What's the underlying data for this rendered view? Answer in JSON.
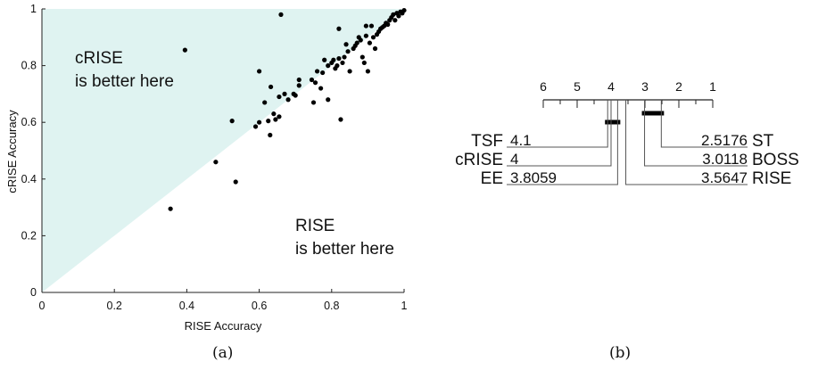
{
  "panel_a": {
    "caption": "(a)",
    "upper_region_label": [
      "cRISE",
      "is better here"
    ],
    "lower_region_label": [
      "RISE",
      "is better here"
    ],
    "shade_color": "#dff3f1"
  },
  "panel_b": {
    "caption": "(b)"
  },
  "chart_data": [
    {
      "type": "scatter",
      "xlabel": "RISE Accuracy",
      "ylabel": "cRISE Accuracy",
      "xlim": [
        0,
        1
      ],
      "ylim": [
        0,
        1
      ],
      "xticks": [
        "0",
        "0.2",
        "0.4",
        "0.6",
        "0.8",
        "1"
      ],
      "yticks": [
        "0",
        "0.2",
        "0.4",
        "0.6",
        "0.8",
        "1"
      ],
      "grid": false,
      "series": [
        {
          "color": "#000000",
          "points": [
            [
              0.355,
              0.295
            ],
            [
              0.395,
              0.855
            ],
            [
              0.48,
              0.46
            ],
            [
              0.535,
              0.39
            ],
            [
              0.525,
              0.605
            ],
            [
              0.59,
              0.585
            ],
            [
              0.6,
              0.6
            ],
            [
              0.6,
              0.78
            ],
            [
              0.615,
              0.67
            ],
            [
              0.625,
              0.605
            ],
            [
              0.63,
              0.555
            ],
            [
              0.632,
              0.725
            ],
            [
              0.64,
              0.63
            ],
            [
              0.645,
              0.61
            ],
            [
              0.655,
              0.69
            ],
            [
              0.66,
              0.98
            ],
            [
              0.655,
              0.62
            ],
            [
              0.67,
              0.7
            ],
            [
              0.68,
              0.68
            ],
            [
              0.695,
              0.7
            ],
            [
              0.7,
              0.695
            ],
            [
              0.71,
              0.73
            ],
            [
              0.71,
              0.75
            ],
            [
              0.745,
              0.75
            ],
            [
              0.75,
              0.67
            ],
            [
              0.755,
              0.74
            ],
            [
              0.76,
              0.78
            ],
            [
              0.77,
              0.72
            ],
            [
              0.775,
              0.775
            ],
            [
              0.78,
              0.82
            ],
            [
              0.79,
              0.68
            ],
            [
              0.79,
              0.8
            ],
            [
              0.8,
              0.81
            ],
            [
              0.805,
              0.82
            ],
            [
              0.81,
              0.79
            ],
            [
              0.815,
              0.8
            ],
            [
              0.82,
              0.93
            ],
            [
              0.82,
              0.825
            ],
            [
              0.825,
              0.61
            ],
            [
              0.83,
              0.81
            ],
            [
              0.835,
              0.83
            ],
            [
              0.84,
              0.875
            ],
            [
              0.845,
              0.85
            ],
            [
              0.85,
              0.78
            ],
            [
              0.86,
              0.86
            ],
            [
              0.865,
              0.87
            ],
            [
              0.87,
              0.88
            ],
            [
              0.875,
              0.9
            ],
            [
              0.88,
              0.89
            ],
            [
              0.885,
              0.83
            ],
            [
              0.89,
              0.81
            ],
            [
              0.895,
              0.905
            ],
            [
              0.895,
              0.94
            ],
            [
              0.9,
              0.78
            ],
            [
              0.905,
              0.88
            ],
            [
              0.91,
              0.94
            ],
            [
              0.915,
              0.9
            ],
            [
              0.92,
              0.86
            ],
            [
              0.925,
              0.91
            ],
            [
              0.93,
              0.92
            ],
            [
              0.935,
              0.93
            ],
            [
              0.94,
              0.935
            ],
            [
              0.945,
              0.94
            ],
            [
              0.95,
              0.95
            ],
            [
              0.955,
              0.945
            ],
            [
              0.96,
              0.96
            ],
            [
              0.965,
              0.97
            ],
            [
              0.97,
              0.98
            ],
            [
              0.975,
              0.96
            ],
            [
              0.98,
              0.985
            ],
            [
              0.985,
              0.975
            ],
            [
              0.99,
              0.99
            ],
            [
              0.995,
              0.985
            ],
            [
              1.0,
              0.995
            ]
          ]
        }
      ],
      "annotations": [
        "cRISE is better here",
        "RISE is better here"
      ]
    },
    {
      "type": "critical-difference",
      "axis_range": [
        1,
        6
      ],
      "axis_reversed": true,
      "ticks": [
        "6",
        "5",
        "4",
        "3",
        "2",
        "1"
      ],
      "groups": [
        [
          4.1,
          3.8059
        ],
        [
          3.0118,
          2.5176
        ]
      ],
      "left": [
        {
          "name": "TSF",
          "rank": 4.1,
          "rank_label": "4.1"
        },
        {
          "name": "cRISE",
          "rank": 4.0,
          "rank_label": "4"
        },
        {
          "name": "EE",
          "rank": 3.8059,
          "rank_label": "3.8059"
        }
      ],
      "right": [
        {
          "name": "ST",
          "rank": 2.5176,
          "rank_label": "2.5176"
        },
        {
          "name": "BOSS",
          "rank": 3.0118,
          "rank_label": "3.0118"
        },
        {
          "name": "RISE",
          "rank": 3.5647,
          "rank_label": "3.5647"
        }
      ]
    }
  ]
}
